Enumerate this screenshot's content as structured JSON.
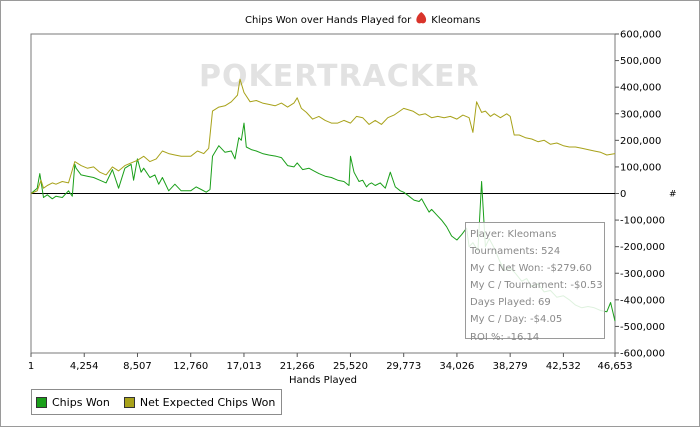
{
  "colors": {
    "chips_won": "#1a9f1a",
    "net_expected": "#a8a21a",
    "watermark": "#e2e2e2",
    "card_icon": "#d9342b",
    "zero_line": "#000000"
  },
  "chart_data": {
    "type": "line",
    "title": "Chips Won over Hands Played for",
    "player_name": "Kleomans",
    "title_icon": "poker-card-icon",
    "watermark": "POKERTRACKER",
    "xlabel": "Hands Played",
    "ylabel": "",
    "right_axis_unit": "#",
    "xlim": [
      1,
      46653
    ],
    "ylim": [
      -600000,
      600000
    ],
    "x_ticks": [
      "1",
      "4,254",
      "8,507",
      "12,760",
      "17,013",
      "21,266",
      "25,520",
      "29,773",
      "34,026",
      "38,279",
      "42,532",
      "46,653"
    ],
    "y_ticks": [
      "600,000",
      "500,000",
      "400,000",
      "300,000",
      "200,000",
      "100,000",
      "0",
      "-100,000",
      "-200,000",
      "-300,000",
      "-400,000",
      "-500,000",
      "-600,000"
    ],
    "grid": false,
    "legend_position": "bottom-left",
    "series": [
      {
        "name": "Chips Won",
        "x": [
          1,
          500,
          700,
          1000,
          1300,
          1700,
          2000,
          2500,
          3000,
          3300,
          3500,
          3600,
          4000,
          4500,
          5000,
          5500,
          6000,
          6500,
          7000,
          7500,
          8000,
          8200,
          8500,
          8800,
          9000,
          9500,
          9900,
          10200,
          10500,
          11000,
          11500,
          12000,
          12760,
          13200,
          13600,
          14000,
          14300,
          14500,
          15000,
          15500,
          16000,
          16300,
          16600,
          16800,
          17013,
          17200,
          17600,
          18000,
          18500,
          19000,
          19600,
          20000,
          20500,
          21000,
          21266,
          21700,
          22200,
          22600,
          23000,
          23500,
          24000,
          24500,
          25000,
          25400,
          25520,
          25800,
          26200,
          26500,
          26800,
          27000,
          27200,
          27500,
          27900,
          28300,
          28700,
          29100,
          29500,
          29773,
          30200,
          30600,
          31000,
          31200,
          31500,
          31800,
          32000,
          32400,
          32800,
          33200,
          33600,
          34026,
          34400,
          34800,
          35000,
          35300,
          35700,
          36000,
          36300,
          36600,
          37000,
          37400,
          37800,
          38279,
          38700,
          39200,
          39600,
          40000,
          40500,
          41000,
          41500,
          42000,
          42532,
          43000,
          43500,
          44000,
          44500,
          45000,
          45500,
          46000,
          46300,
          46653
        ],
        "values": [
          0,
          20000,
          75000,
          -15000,
          -5000,
          -20000,
          -10000,
          -15000,
          10000,
          -10000,
          110000,
          95000,
          70000,
          65000,
          60000,
          50000,
          40000,
          90000,
          20000,
          95000,
          110000,
          50000,
          130000,
          80000,
          95000,
          60000,
          70000,
          35000,
          60000,
          10000,
          35000,
          10000,
          10000,
          25000,
          15000,
          5000,
          15000,
          140000,
          180000,
          155000,
          160000,
          130000,
          210000,
          200000,
          265000,
          175000,
          165000,
          160000,
          150000,
          145000,
          140000,
          135000,
          105000,
          100000,
          115000,
          90000,
          95000,
          85000,
          75000,
          65000,
          60000,
          50000,
          45000,
          30000,
          140000,
          80000,
          45000,
          50000,
          25000,
          35000,
          40000,
          30000,
          40000,
          20000,
          80000,
          25000,
          10000,
          5000,
          -10000,
          -25000,
          -30000,
          -20000,
          -45000,
          -70000,
          -60000,
          -80000,
          -100000,
          -125000,
          -160000,
          -175000,
          -155000,
          -130000,
          -200000,
          -185000,
          -215000,
          45000,
          -200000,
          -170000,
          -205000,
          -250000,
          -290000,
          -280000,
          -300000,
          -330000,
          -320000,
          -350000,
          -340000,
          -370000,
          -365000,
          -390000,
          -385000,
          -400000,
          -420000,
          -430000,
          -425000,
          -430000,
          -440000,
          -445000,
          -410000,
          -480000
        ]
      },
      {
        "name": "Net Expected Chips Won",
        "x": [
          1,
          500,
          800,
          1000,
          1300,
          1700,
          2000,
          2500,
          3000,
          3500,
          4000,
          4500,
          5000,
          5500,
          6000,
          6500,
          7000,
          7500,
          8000,
          8500,
          9000,
          9500,
          10000,
          10500,
          11000,
          11500,
          12000,
          12760,
          13300,
          13800,
          14200,
          14500,
          15000,
          15500,
          16000,
          16500,
          16700,
          17013,
          17500,
          18000,
          18500,
          19000,
          19500,
          20000,
          20500,
          21000,
          21266,
          21600,
          22000,
          22500,
          23000,
          23500,
          24000,
          24500,
          25000,
          25520,
          26000,
          26500,
          27000,
          27500,
          28000,
          28500,
          29000,
          29773,
          30500,
          31000,
          31500,
          32000,
          32500,
          33000,
          33500,
          34026,
          34500,
          35000,
          35300,
          35600,
          36000,
          36300,
          36700,
          37000,
          37500,
          38000,
          38279,
          38600,
          39000,
          39500,
          40000,
          40500,
          41000,
          41500,
          42000,
          42532,
          43000,
          43500,
          44000,
          44500,
          45000,
          45500,
          46000,
          46653
        ],
        "values": [
          0,
          10000,
          50000,
          20000,
          30000,
          40000,
          35000,
          45000,
          40000,
          120000,
          105000,
          95000,
          100000,
          80000,
          70000,
          100000,
          85000,
          105000,
          115000,
          125000,
          140000,
          120000,
          130000,
          160000,
          150000,
          145000,
          140000,
          140000,
          160000,
          150000,
          170000,
          310000,
          325000,
          330000,
          345000,
          370000,
          430000,
          380000,
          345000,
          350000,
          340000,
          335000,
          330000,
          340000,
          325000,
          340000,
          360000,
          320000,
          305000,
          280000,
          290000,
          275000,
          265000,
          265000,
          275000,
          265000,
          290000,
          285000,
          260000,
          275000,
          260000,
          285000,
          295000,
          320000,
          310000,
          295000,
          300000,
          285000,
          290000,
          285000,
          290000,
          280000,
          295000,
          285000,
          230000,
          345000,
          305000,
          310000,
          290000,
          300000,
          285000,
          300000,
          290000,
          220000,
          220000,
          210000,
          205000,
          195000,
          200000,
          185000,
          190000,
          180000,
          175000,
          175000,
          170000,
          165000,
          160000,
          155000,
          145000,
          150000
        ]
      }
    ]
  },
  "legend": {
    "items": [
      {
        "label": "Chips Won"
      },
      {
        "label": "Net Expected Chips Won"
      }
    ]
  },
  "tooltip": {
    "lines": [
      "Player: Kleomans",
      "Tournaments: 524",
      "My C Net Won: -$279.60",
      "My C / Tournament: -$0.53",
      "Days Played: 69",
      "My C / Day: -$4.05",
      "ROI %: -16.14"
    ]
  }
}
